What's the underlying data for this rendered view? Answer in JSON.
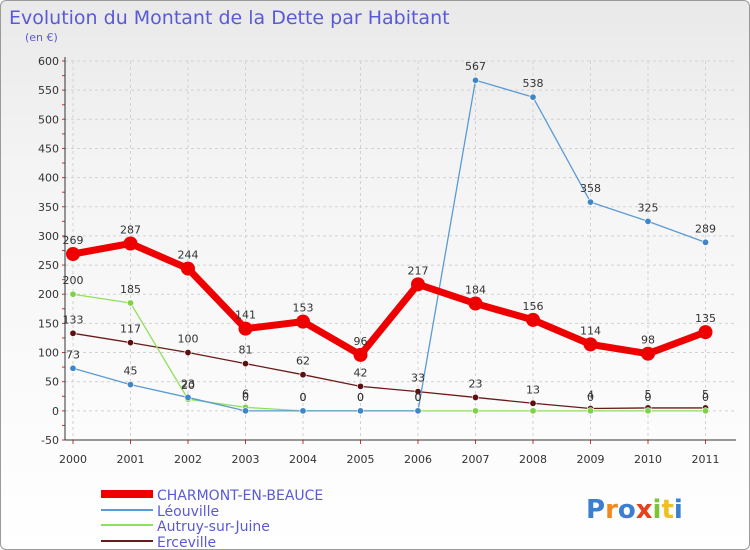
{
  "chart_data": {
    "type": "line",
    "title": "Evolution du Montant de la Dette par Habitant",
    "subtitle": "(en €)",
    "x": [
      "2000",
      "2001",
      "2002",
      "2003",
      "2004",
      "2005",
      "2006",
      "2007",
      "2008",
      "2009",
      "2010",
      "2011"
    ],
    "ylim": [
      -50,
      600
    ],
    "yticks": [
      "-50",
      "0",
      "50",
      "100",
      "150",
      "200",
      "250",
      "300",
      "350",
      "400",
      "450",
      "500",
      "550",
      "600"
    ],
    "grid": true,
    "legend_position": "bottom-left",
    "series": [
      {
        "name": "CHARMONT-EN-BEAUCE",
        "color": "#ee0000",
        "values": [
          269,
          287,
          244,
          141,
          153,
          96,
          217,
          184,
          156,
          114,
          98,
          135
        ]
      },
      {
        "name": "Léouville",
        "color": "#5b9bd5",
        "values": [
          73,
          45,
          23,
          0,
          0,
          0,
          0,
          567,
          538,
          358,
          325,
          289
        ]
      },
      {
        "name": "Autruy-sur-Juine",
        "color": "#8ee05a",
        "values": [
          200,
          185,
          20,
          6,
          0,
          0,
          0,
          0,
          0,
          0,
          0,
          0
        ]
      },
      {
        "name": "Erceville",
        "color": "#6b1a1a",
        "values": [
          133,
          117,
          100,
          81,
          62,
          42,
          33,
          23,
          13,
          4,
          5,
          5
        ]
      }
    ],
    "data_labels": {
      "CHARMONT-EN-BEAUCE": [
        "269",
        "287",
        "244",
        "141",
        "153",
        "96",
        "217",
        "184",
        "156",
        "114",
        "98",
        "135"
      ],
      "Léouville": [
        "73",
        "45",
        "23",
        "0",
        "0",
        "0",
        "0",
        "567",
        "538",
        "358",
        "325",
        "289"
      ],
      "Autruy-sur-Juine": [
        "200",
        "185",
        "20",
        "6",
        "0",
        "0",
        "0",
        "",
        "",
        "0",
        "0",
        "0"
      ],
      "Erceville": [
        "133",
        "117",
        "100",
        "81",
        "62",
        "42",
        "33",
        "23",
        "13",
        "4",
        "5",
        "5"
      ]
    }
  },
  "branding": {
    "logo_text": "Proxiti"
  }
}
